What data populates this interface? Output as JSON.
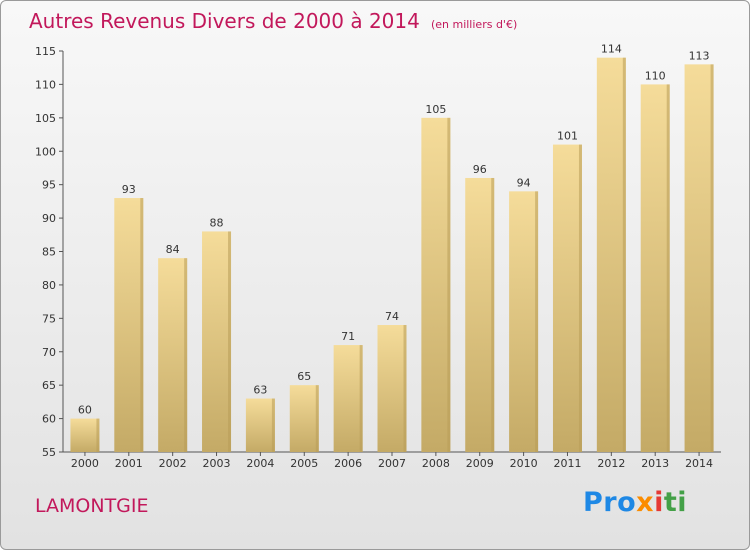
{
  "title": "Autres Revenus Divers de 2000 à 2014",
  "unit_note": "(en milliers d'€)",
  "place_name": "LAMONTGIE",
  "logo": {
    "p1": "Pro",
    "p2": "x",
    "p3": "i",
    "p4": "ti"
  },
  "colors": {
    "title": "#c2185b",
    "bar_light": "#f5dc9a",
    "bar_dark": "#c4aa66"
  },
  "chart_data": {
    "type": "bar",
    "categories": [
      "2000",
      "2001",
      "2002",
      "2003",
      "2004",
      "2005",
      "2006",
      "2007",
      "2008",
      "2009",
      "2010",
      "2011",
      "2012",
      "2013",
      "2014"
    ],
    "values": [
      60,
      93,
      84,
      88,
      63,
      65,
      71,
      74,
      105,
      96,
      94,
      101,
      114,
      110,
      113
    ],
    "ylim": [
      55,
      115
    ],
    "yticks": [
      55,
      60,
      65,
      70,
      75,
      80,
      85,
      90,
      95,
      100,
      105,
      110,
      115
    ],
    "grid": false,
    "legend": "none"
  }
}
